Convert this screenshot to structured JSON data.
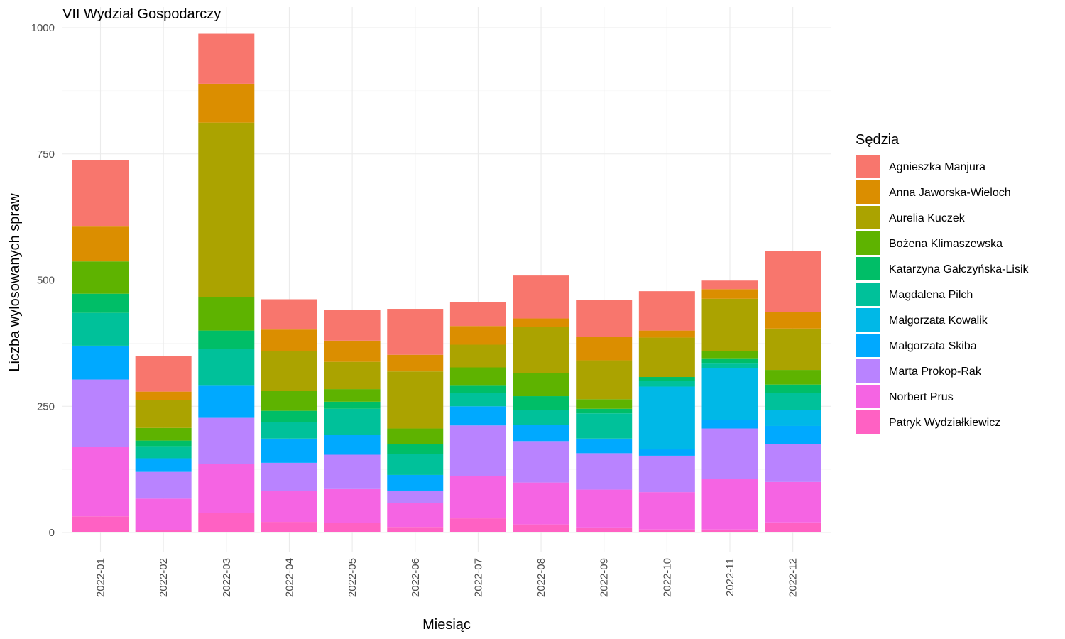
{
  "chart_data": {
    "type": "bar",
    "stacked": true,
    "title": "VII Wydział Gospodarczy",
    "xlabel": "Miesiąc",
    "ylabel": "Liczba wylosowanych spraw",
    "ylim": [
      0,
      1000
    ],
    "yticks": [
      0,
      250,
      500,
      750,
      1000
    ],
    "grid": true,
    "legend": {
      "title": "Sędzia",
      "position": "right"
    },
    "categories": [
      "2022-01",
      "2022-02",
      "2022-03",
      "2022-04",
      "2022-05",
      "2022-06",
      "2022-07",
      "2022-08",
      "2022-09",
      "2022-10",
      "2022-11",
      "2022-12"
    ],
    "series": [
      {
        "name": "Patryk Wydziałkiewicz",
        "color": "#FF61C3",
        "values": [
          32,
          5,
          39,
          21,
          19,
          11,
          28,
          16,
          10,
          6,
          6,
          20
        ]
      },
      {
        "name": "Norbert Prus",
        "color": "#F564E3",
        "values": [
          138,
          62,
          97,
          61,
          67,
          47,
          84,
          83,
          75,
          74,
          100,
          80
        ]
      },
      {
        "name": "Marta Prokop-Rak",
        "color": "#B983FF",
        "values": [
          133,
          53,
          91,
          56,
          68,
          25,
          100,
          82,
          72,
          72,
          100,
          75
        ]
      },
      {
        "name": "Małgorzata Skiba",
        "color": "#00A9FF",
        "values": [
          67,
          27,
          65,
          48,
          39,
          31,
          38,
          32,
          29,
          13,
          17,
          36
        ]
      },
      {
        "name": "Małgorzata Kowalik",
        "color": "#00B8E7",
        "values": [
          0,
          0,
          0,
          0,
          0,
          0,
          0,
          0,
          0,
          124,
          102,
          31
        ]
      },
      {
        "name": "Magdalena Pilch",
        "color": "#00C19A",
        "values": [
          65,
          24,
          71,
          33,
          52,
          42,
          26,
          30,
          50,
          11,
          11,
          35
        ]
      },
      {
        "name": "Katarzyna Gałczyńska-Lisik",
        "color": "#00BE67",
        "values": [
          38,
          11,
          37,
          22,
          14,
          19,
          16,
          27,
          9,
          8,
          9,
          16
        ]
      },
      {
        "name": "Bożena Klimaszewska",
        "color": "#5EB300",
        "values": [
          64,
          25,
          66,
          40,
          25,
          31,
          35,
          46,
          19,
          0,
          15,
          29
        ]
      },
      {
        "name": "Aurelia Kuczek",
        "color": "#ABA300",
        "values": [
          0,
          55,
          346,
          78,
          54,
          113,
          45,
          91,
          77,
          78,
          103,
          82
        ]
      },
      {
        "name": "Anna Jaworska-Wieloch",
        "color": "#DB8E00",
        "values": [
          69,
          17,
          77,
          43,
          42,
          33,
          37,
          17,
          46,
          14,
          19,
          32
        ]
      },
      {
        "name": "Agnieszka Manjura",
        "color": "#F8766D",
        "values": [
          132,
          70,
          99,
          60,
          61,
          91,
          47,
          85,
          74,
          78,
          17,
          122
        ]
      }
    ]
  }
}
